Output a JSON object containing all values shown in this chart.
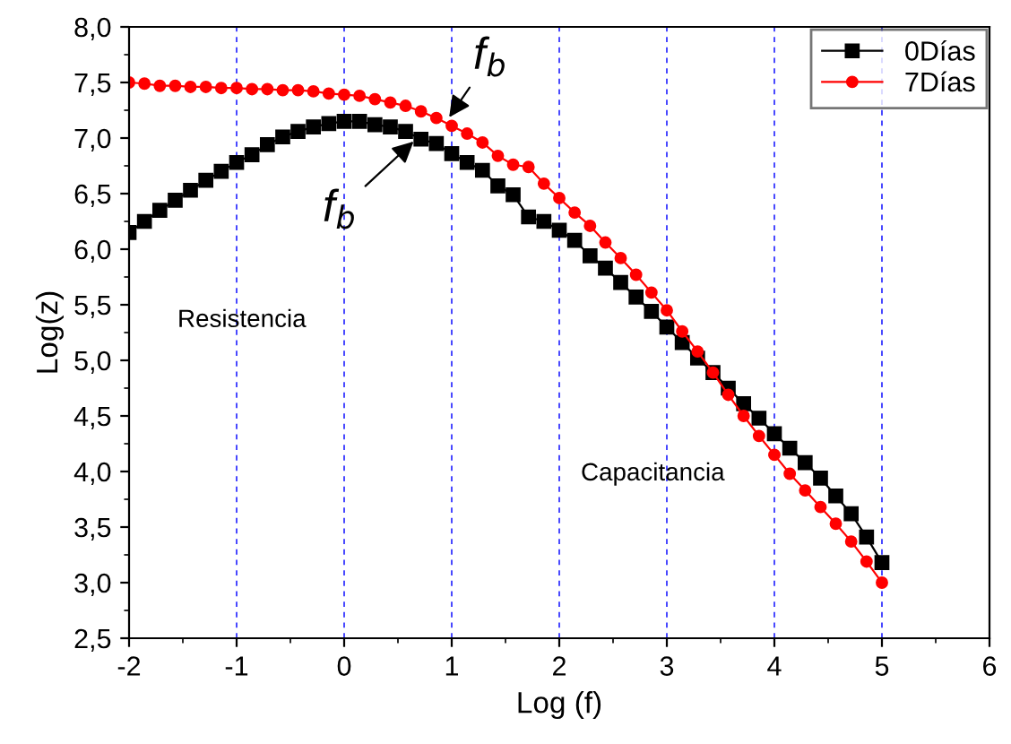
{
  "chart_data": {
    "type": "line",
    "xlabel": "Log (f)",
    "ylabel": "Log(z)",
    "x": [
      -2.0,
      -1.857,
      -1.714,
      -1.571,
      -1.429,
      -1.286,
      -1.143,
      -1.0,
      -0.857,
      -0.714,
      -0.571,
      -0.429,
      -0.286,
      -0.143,
      0.0,
      0.143,
      0.286,
      0.429,
      0.571,
      0.714,
      0.857,
      1.0,
      1.143,
      1.286,
      1.429,
      1.571,
      1.714,
      1.857,
      2.0,
      2.143,
      2.286,
      2.429,
      2.571,
      2.714,
      2.857,
      3.0,
      3.143,
      3.286,
      3.429,
      3.571,
      3.714,
      3.857,
      4.0,
      4.143,
      4.286,
      4.429,
      4.571,
      4.714,
      4.857,
      5.0
    ],
    "series": [
      {
        "name": "0Días",
        "color": "#000000",
        "marker": "square",
        "values": [
          6.15,
          6.25,
          6.35,
          6.44,
          6.53,
          6.62,
          6.7,
          6.78,
          6.85,
          6.94,
          7.01,
          7.06,
          7.1,
          7.13,
          7.15,
          7.15,
          7.12,
          7.1,
          7.06,
          6.99,
          6.95,
          6.86,
          6.78,
          6.71,
          6.57,
          6.49,
          6.29,
          6.25,
          6.17,
          6.08,
          5.94,
          5.83,
          5.7,
          5.57,
          5.44,
          5.3,
          5.16,
          5.02,
          4.89,
          4.75,
          4.61,
          4.48,
          4.34,
          4.21,
          4.08,
          3.94,
          3.78,
          3.62,
          3.41,
          3.18
        ]
      },
      {
        "name": "7Días",
        "color": "#ff0000",
        "marker": "circle",
        "values": [
          7.5,
          7.49,
          7.47,
          7.47,
          7.46,
          7.46,
          7.45,
          7.45,
          7.44,
          7.44,
          7.43,
          7.43,
          7.42,
          7.4,
          7.39,
          7.38,
          7.35,
          7.32,
          7.29,
          7.24,
          7.18,
          7.11,
          7.04,
          6.96,
          6.84,
          6.76,
          6.74,
          6.59,
          6.46,
          6.33,
          6.21,
          6.06,
          5.92,
          5.77,
          5.61,
          5.45,
          5.26,
          5.08,
          4.89,
          4.69,
          4.5,
          4.32,
          4.15,
          3.98,
          3.83,
          3.68,
          3.53,
          3.37,
          3.19,
          3.0
        ]
      }
    ],
    "xlim": [
      -2,
      6
    ],
    "xticks": [
      -2,
      -1,
      0,
      1,
      2,
      3,
      4,
      5,
      6
    ],
    "ylim": [
      2.5,
      8.0
    ],
    "yticks": [
      {
        "value": 2.5,
        "label": "2,5"
      },
      {
        "value": 3.0,
        "label": "3,0"
      },
      {
        "value": 3.5,
        "label": "3,5"
      },
      {
        "value": 4.0,
        "label": "4,0"
      },
      {
        "value": 4.5,
        "label": "4,5"
      },
      {
        "value": 5.0,
        "label": "5,0"
      },
      {
        "value": 5.5,
        "label": "5,5"
      },
      {
        "value": 6.0,
        "label": "6,0"
      },
      {
        "value": 6.5,
        "label": "6,5"
      },
      {
        "value": 7.0,
        "label": "7,0"
      },
      {
        "value": 7.5,
        "label": "7,5"
      },
      {
        "value": 8.0,
        "label": "8,0"
      }
    ],
    "grid": "x",
    "legend": "top right",
    "line_style": "solid",
    "annotations": [
      {
        "text": "f$_{b}$",
        "x": 0.95,
        "y": 7.15
      },
      {
        "text": "f$_{b}$",
        "x": 0.68,
        "y": 7.0
      },
      "Resistencia",
      "Capacitancia"
    ]
  }
}
